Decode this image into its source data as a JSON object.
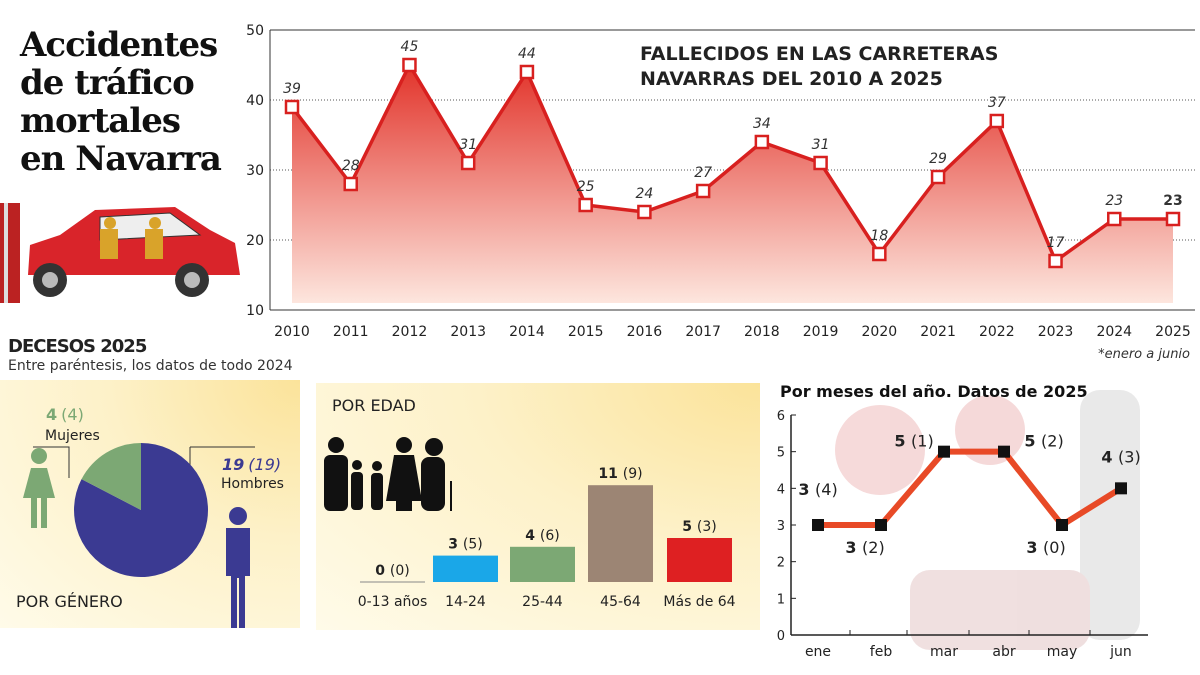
{
  "title": [
    "Accidentes",
    "de tráfico",
    "mortales",
    "en Navarra"
  ],
  "colors": {
    "line": "#d8201f",
    "women": "#7ca874",
    "men": "#3b3a92",
    "month_line": "#e84a27"
  },
  "chart_data": [
    {
      "type": "area",
      "title": "FALLECIDOS EN LAS CARRETERAS NAVARRAS DEL 2010 A 2025",
      "title_lines": [
        "FALLECIDOS EN LAS CARRETERAS",
        "NAVARRAS DEL 2010 A 2025"
      ],
      "x": [
        "2010",
        "2011",
        "2012",
        "2013",
        "2014",
        "2015",
        "2016",
        "2017",
        "2018",
        "2019",
        "2020",
        "2021",
        "2022",
        "2023",
        "2024",
        "2025"
      ],
      "values": [
        39,
        28,
        45,
        31,
        44,
        25,
        24,
        27,
        34,
        31,
        18,
        29,
        37,
        17,
        23,
        23
      ],
      "ylim": [
        10,
        50
      ],
      "yticks": [
        10,
        20,
        30,
        40,
        50
      ],
      "grid": true,
      "note": "*enero a junio"
    },
    {
      "type": "pie",
      "title": "POR GÉNERO",
      "slices": [
        {
          "label": "Mujeres",
          "value": 4,
          "previous": "(4)",
          "color": "#7ca874"
        },
        {
          "label": "Hombres",
          "value": 19,
          "previous": "(19)",
          "color": "#3b3a92"
        }
      ]
    },
    {
      "type": "bar",
      "title": "POR EDAD",
      "categories": [
        "0-13 años",
        "14-24",
        "25-44",
        "45-64",
        "Más de 64"
      ],
      "values": [
        0,
        3,
        4,
        11,
        5
      ],
      "previous": [
        "(0)",
        "(5)",
        "(6)",
        "(9)",
        "(3)"
      ],
      "colors": [
        "#888888",
        "#1aa7e8",
        "#7ca874",
        "#9c8574",
        "#de2022"
      ]
    },
    {
      "type": "line",
      "title": "Por meses del año. Datos de 2025",
      "categories": [
        "ene",
        "feb",
        "mar",
        "abr",
        "may",
        "jun"
      ],
      "values": [
        3,
        3,
        5,
        5,
        3,
        4
      ],
      "previous": [
        "(4)",
        "(2)",
        "(1)",
        "(2)",
        "(0)",
        "(3)"
      ],
      "ylim": [
        0,
        6
      ],
      "yticks": [
        0,
        1,
        2,
        3,
        4,
        5,
        6
      ]
    }
  ],
  "decesos": {
    "title": "DECESOS 2025",
    "subtitle": "Entre paréntesis, los datos de todo 2024"
  }
}
